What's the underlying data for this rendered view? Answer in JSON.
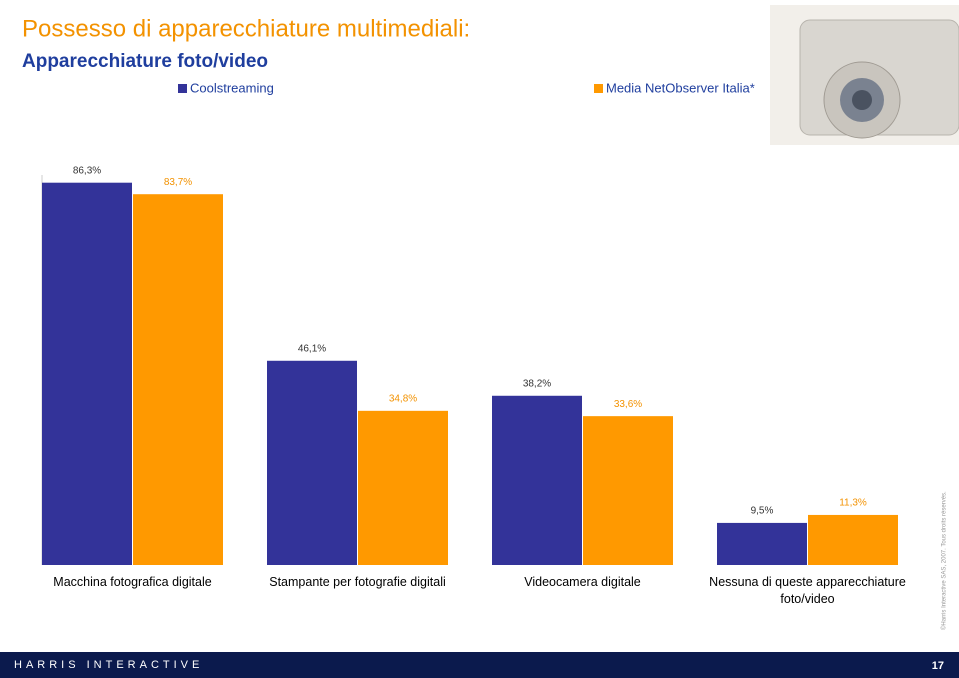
{
  "chart_data": {
    "type": "bar",
    "title": "Possesso di apparecchiature multimediali:",
    "subtitle": "Apparecchiature foto/video",
    "categories": [
      "Macchina fotografica digitale",
      "Stampante per fotografie digitali",
      "Videocamera digitale",
      "Nessuna di queste apparecchiature foto/video"
    ],
    "series": [
      {
        "name": "Coolstreaming",
        "color": "#333399",
        "values": [
          86.3,
          46.1,
          38.2,
          9.5
        ],
        "value_labels": [
          "86,3%",
          "46,1%",
          "38,2%",
          "9,5%"
        ]
      },
      {
        "name": "Media NetObserver Italia*",
        "color": "#ff9900",
        "values": [
          83.7,
          34.8,
          33.6,
          11.3
        ],
        "value_labels": [
          "83,7%",
          "34,8%",
          "33,6%",
          "11,3%"
        ]
      }
    ],
    "ylim": [
      0,
      100
    ]
  },
  "footer": {
    "company": "HARRIS INTERACTIVE",
    "page": "17",
    "copyright": "©Harris Interactive SAS, 2007. Tous droits réservés."
  }
}
